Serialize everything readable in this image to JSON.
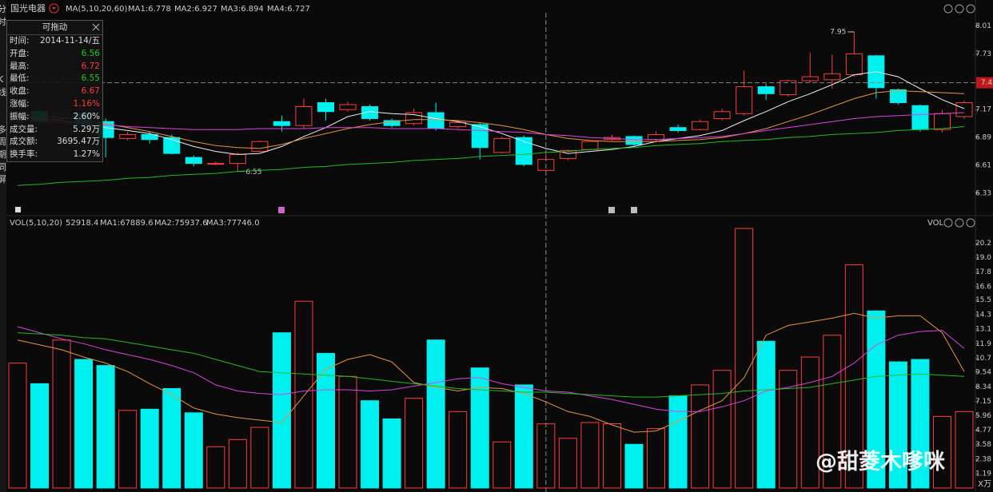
{
  "header": {
    "stock": "国光电器"
  },
  "sidebar": [
    "分",
    "时",
    "K",
    "线",
    "多",
    "周",
    "期",
    "同",
    "屏"
  ],
  "info_panel": {
    "title": "可拖动",
    "rows": [
      {
        "label": "时间:",
        "value": "2014-11-14/五",
        "color": "#dddddd"
      },
      {
        "label": "开盘:",
        "value": "6.56",
        "color": "#22c922"
      },
      {
        "label": "最高:",
        "value": "6.72",
        "color": "#ff3b3b"
      },
      {
        "label": "最低:",
        "value": "6.55",
        "color": "#22c922"
      },
      {
        "label": "收盘:",
        "value": "6.67",
        "color": "#ff3b3b"
      },
      {
        "label": "涨幅:",
        "value": "1.16%",
        "color": "#ff3b3b"
      },
      {
        "label": "振幅:",
        "value": "2.60%",
        "color": "#dddddd"
      },
      {
        "label": "成交量:",
        "value": "5.29万",
        "color": "#dddddd"
      },
      {
        "label": "成交额:",
        "value": "3695.47万",
        "color": "#dddddd"
      },
      {
        "label": "换手率:",
        "value": "1.27%",
        "color": "#dddddd"
      }
    ]
  },
  "chart_data": [
    {
      "type": "candlestick",
      "indicator": "MA(5,10,20,60)",
      "open": [
        7.05,
        7.15,
        7.08,
        7.13,
        7.05,
        6.88,
        6.92,
        6.89,
        6.69,
        6.63,
        6.63,
        6.75,
        7.05,
        7.01,
        7.24,
        7.17,
        7.2,
        7.06,
        7.03,
        7.14,
        7.0,
        7.02,
        6.74,
        6.89,
        6.56,
        6.68,
        6.77,
        6.87,
        6.9,
        6.87,
        6.99,
        6.97,
        7.08,
        7.13,
        7.4,
        7.32,
        7.46,
        7.47,
        7.52,
        7.71,
        7.37,
        7.21,
        6.97,
        7.1
      ],
      "high": [
        7.15,
        7.18,
        7.16,
        7.15,
        7.08,
        6.95,
        6.95,
        6.92,
        6.71,
        6.65,
        6.74,
        6.86,
        7.11,
        7.28,
        7.28,
        7.25,
        7.22,
        7.08,
        7.18,
        7.24,
        7.06,
        7.04,
        6.9,
        6.91,
        6.72,
        6.77,
        6.86,
        6.92,
        6.91,
        6.95,
        7.02,
        7.07,
        7.18,
        7.56,
        7.43,
        7.47,
        7.74,
        7.72,
        7.95,
        7.72,
        7.38,
        7.22,
        7.17,
        7.26
      ],
      "low": [
        7.02,
        7.0,
        7.05,
        7.0,
        6.69,
        6.86,
        6.83,
        6.72,
        6.6,
        6.61,
        6.55,
        6.74,
        6.95,
        6.98,
        7.06,
        7.15,
        7.06,
        6.99,
        7.01,
        6.96,
        6.98,
        6.67,
        6.73,
        6.6,
        6.55,
        6.66,
        6.76,
        6.86,
        6.8,
        6.85,
        6.94,
        6.96,
        7.06,
        7.11,
        7.27,
        7.3,
        7.44,
        7.38,
        7.5,
        7.28,
        7.22,
        6.95,
        6.94,
        7.08
      ],
      "close": [
        7.12,
        7.05,
        7.13,
        7.02,
        6.89,
        6.92,
        6.87,
        6.73,
        6.63,
        6.63,
        6.72,
        6.85,
        7.01,
        7.2,
        7.15,
        7.22,
        7.08,
        7.01,
        7.14,
        6.98,
        7.04,
        6.79,
        6.88,
        6.62,
        6.67,
        6.76,
        6.85,
        6.89,
        6.82,
        6.92,
        6.96,
        7.05,
        7.15,
        7.4,
        7.33,
        7.46,
        7.5,
        7.53,
        7.73,
        7.39,
        7.24,
        6.97,
        7.13,
        7.24
      ],
      "up_color": "#ff3b3b",
      "down_color": "#00f0f0",
      "series": [
        {
          "name": "MA1:6.778",
          "color": "#f0f0f0",
          "values": [
            7.1,
            7.08,
            7.06,
            7.03,
            6.99,
            6.96,
            6.93,
            6.87,
            6.8,
            6.75,
            6.72,
            6.73,
            6.8,
            6.9,
            6.99,
            7.1,
            7.15,
            7.13,
            7.12,
            7.08,
            7.05,
            7.0,
            6.93,
            6.85,
            6.78,
            6.73,
            6.75,
            6.77,
            6.8,
            6.85,
            6.88,
            6.91,
            6.96,
            7.06,
            7.15,
            7.25,
            7.33,
            7.42,
            7.52,
            7.55,
            7.5,
            7.38,
            7.27,
            7.18
          ]
        },
        {
          "name": "MA2:6.927",
          "color": "#e8943a",
          "values": [
            7.12,
            7.11,
            7.09,
            7.07,
            7.03,
            6.99,
            6.95,
            6.9,
            6.85,
            6.81,
            6.79,
            6.78,
            6.82,
            6.88,
            6.93,
            6.98,
            7.02,
            7.05,
            7.07,
            7.07,
            7.06,
            7.04,
            7.01,
            6.97,
            6.92,
            6.88,
            6.86,
            6.85,
            6.85,
            6.85,
            6.86,
            6.87,
            6.89,
            6.93,
            6.98,
            7.05,
            7.12,
            7.2,
            7.28,
            7.34,
            7.36,
            7.35,
            7.34,
            7.33
          ]
        },
        {
          "name": "MA3:6.894",
          "color": "#e040e0",
          "values": [
            7.06,
            7.05,
            7.04,
            7.03,
            7.02,
            7.0,
            6.99,
            6.98,
            6.97,
            6.97,
            6.97,
            6.98,
            6.98,
            6.98,
            6.99,
            6.99,
            6.99,
            6.98,
            6.98,
            6.98,
            6.97,
            6.96,
            6.95,
            6.94,
            6.92,
            6.91,
            6.89,
            6.88,
            6.87,
            6.87,
            6.88,
            6.89,
            6.9,
            6.93,
            6.96,
            6.99,
            7.02,
            7.05,
            7.08,
            7.1,
            7.11,
            7.12,
            7.13,
            7.14
          ]
        },
        {
          "name": "MA4:6.727",
          "color": "#22bb22",
          "values": [
            6.41,
            6.42,
            6.44,
            6.45,
            6.46,
            6.48,
            6.49,
            6.51,
            6.52,
            6.53,
            6.55,
            6.56,
            6.57,
            6.59,
            6.6,
            6.62,
            6.63,
            6.64,
            6.66,
            6.67,
            6.68,
            6.7,
            6.71,
            6.72,
            6.74,
            6.75,
            6.77,
            6.78,
            6.79,
            6.81,
            6.82,
            6.83,
            6.85,
            6.86,
            6.87,
            6.89,
            6.9,
            6.92,
            6.93,
            6.94,
            6.96,
            6.97,
            6.98,
            7.0
          ]
        }
      ],
      "ylim": [
        6.17,
        8.19
      ],
      "yticks": [
        8.01,
        7.73,
        7.17,
        6.89,
        6.61,
        6.33
      ],
      "selected": 24,
      "crosshair": {
        "value": 7.44,
        "label": "7.4"
      },
      "max_label": "7.95",
      "min_label": "6.55"
    },
    {
      "type": "volume",
      "indicator": "VOL(5,10,20)",
      "current": "52918.4",
      "axis_label": "VOL",
      "unit": "X万",
      "values": [
        10.3,
        8.6,
        12.2,
        10.6,
        10.1,
        6.4,
        6.5,
        8.2,
        6.2,
        3.4,
        4.0,
        5.0,
        12.8,
        15.4,
        11.1,
        9.2,
        7.2,
        5.7,
        7.4,
        12.2,
        6.3,
        9.9,
        3.8,
        8.5,
        5.29,
        4.1,
        5.4,
        5.3,
        3.6,
        4.9,
        7.6,
        8.5,
        9.7,
        21.4,
        12.1,
        9.7,
        10.8,
        12.6,
        18.4,
        14.6,
        10.4,
        10.6,
        5.9,
        6.3
      ],
      "series": [
        {
          "name": "MA1:67889.6",
          "color": "#e8943a",
          "values": [
            12.2,
            11.8,
            11.4,
            10.8,
            10.3,
            9.6,
            8.6,
            7.7,
            6.6,
            6.1,
            5.8,
            5.6,
            5.4,
            7.6,
            9.8,
            10.6,
            11.0,
            10.4,
            8.7,
            8.3,
            8.0,
            8.3,
            8.2,
            7.8,
            7.1,
            6.3,
            5.9,
            5.2,
            4.6,
            4.7,
            5.5,
            6.4,
            7.2,
            9.1,
            12.6,
            13.4,
            13.7,
            14.0,
            14.4,
            14.0,
            14.2,
            14.2,
            12.8,
            9.6
          ]
        },
        {
          "name": "MA2:75937.6",
          "color": "#e040e0",
          "values": [
            13.3,
            12.8,
            12.3,
            11.9,
            11.4,
            11.0,
            10.6,
            10.1,
            9.5,
            8.5,
            8.0,
            7.8,
            7.7,
            8.0,
            8.1,
            8.1,
            8.0,
            8.1,
            8.4,
            8.7,
            9.0,
            9.1,
            8.6,
            8.3,
            8.0,
            7.9,
            7.6,
            7.3,
            6.9,
            6.5,
            6.3,
            6.3,
            6.7,
            7.2,
            8.0,
            8.3,
            8.7,
            9.2,
            10.3,
            11.8,
            12.6,
            12.9,
            13.0,
            11.5
          ]
        },
        {
          "name": "MA3:77746.0",
          "color": "#22bb22",
          "values": [
            12.8,
            12.7,
            12.6,
            12.4,
            12.3,
            12.0,
            11.7,
            11.4,
            11.1,
            10.6,
            10.1,
            9.6,
            9.5,
            9.4,
            9.3,
            9.2,
            9.0,
            8.8,
            8.6,
            8.4,
            8.2,
            8.1,
            8.0,
            7.9,
            7.9,
            7.8,
            7.7,
            7.6,
            7.5,
            7.5,
            7.6,
            7.7,
            7.8,
            8.0,
            8.1,
            8.2,
            8.3,
            8.6,
            8.9,
            9.2,
            9.3,
            9.4,
            9.3,
            9.2
          ]
        }
      ],
      "ylim": [
        0,
        21.6
      ],
      "yticks": [
        20.2,
        {
          "value": 19,
          "label": "19.0"
        },
        17.8,
        16.6,
        15.5,
        14.3,
        13.1,
        11.9,
        10.7,
        9.54,
        8.34,
        7.15,
        5.96,
        4.77,
        3.58,
        2.38,
        1.19
      ]
    }
  ],
  "watermark": "@甜菱木嗲咪"
}
